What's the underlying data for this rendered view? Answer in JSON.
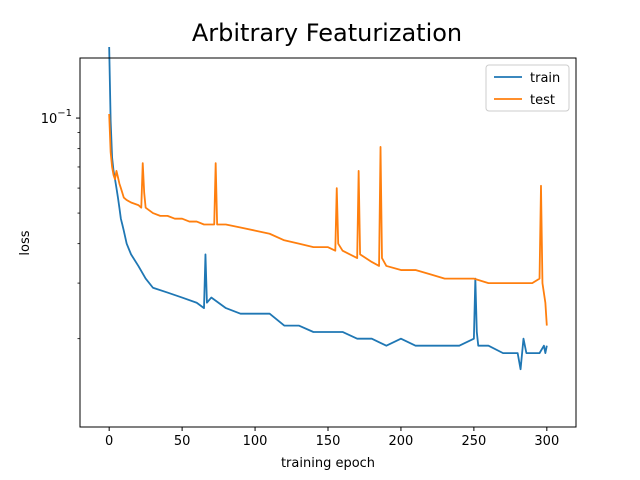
{
  "chart_data": {
    "type": "line",
    "title": "Arbitrary Featurization",
    "xlabel": "training epoch",
    "ylabel": "loss",
    "xlim": [
      -20,
      320
    ],
    "ylim": [
      0.0105,
      0.155
    ],
    "yscale": "log",
    "x_ticks": [
      0,
      50,
      100,
      150,
      200,
      250,
      300
    ],
    "x_tick_labels": [
      "0",
      "50",
      "100",
      "150",
      "200",
      "250",
      "300"
    ],
    "y_major_ticks": [
      0.1
    ],
    "y_tick_label_base": "10",
    "y_tick_label_exp": "−1",
    "legend_position": "top-right",
    "series": [
      {
        "name": "train",
        "color": "#1f77b4",
        "x": [
          0,
          1,
          2,
          3,
          4,
          5,
          6,
          7,
          8,
          9,
          10,
          12,
          15,
          20,
          25,
          30,
          40,
          50,
          60,
          65,
          66,
          67,
          70,
          80,
          90,
          100,
          110,
          120,
          130,
          140,
          150,
          160,
          170,
          180,
          190,
          200,
          210,
          220,
          230,
          240,
          250,
          251,
          252,
          253,
          260,
          270,
          280,
          282,
          284,
          286,
          290,
          295,
          298,
          299,
          300
        ],
        "y": [
          0.168,
          0.098,
          0.075,
          0.068,
          0.064,
          0.06,
          0.056,
          0.052,
          0.048,
          0.046,
          0.044,
          0.04,
          0.037,
          0.034,
          0.031,
          0.029,
          0.028,
          0.027,
          0.026,
          0.025,
          0.037,
          0.026,
          0.027,
          0.025,
          0.024,
          0.024,
          0.024,
          0.022,
          0.022,
          0.021,
          0.021,
          0.021,
          0.02,
          0.02,
          0.019,
          0.02,
          0.019,
          0.019,
          0.019,
          0.019,
          0.02,
          0.031,
          0.021,
          0.019,
          0.019,
          0.018,
          0.018,
          0.016,
          0.02,
          0.018,
          0.018,
          0.018,
          0.019,
          0.018,
          0.019
        ]
      },
      {
        "name": "test",
        "color": "#ff7f0e",
        "x": [
          0,
          1,
          2,
          3,
          4,
          5,
          6,
          7,
          8,
          9,
          10,
          12,
          15,
          20,
          22,
          23,
          24,
          25,
          30,
          35,
          40,
          45,
          50,
          55,
          60,
          65,
          70,
          72,
          73,
          74,
          80,
          90,
          100,
          110,
          120,
          130,
          140,
          150,
          155,
          156,
          157,
          160,
          170,
          171,
          172,
          180,
          185,
          186,
          187,
          190,
          200,
          210,
          220,
          230,
          240,
          250,
          260,
          270,
          280,
          290,
          295,
          296,
          297,
          299,
          300
        ],
        "y": [
          0.103,
          0.078,
          0.07,
          0.066,
          0.064,
          0.068,
          0.065,
          0.062,
          0.06,
          0.058,
          0.056,
          0.055,
          0.054,
          0.053,
          0.052,
          0.072,
          0.058,
          0.052,
          0.05,
          0.049,
          0.049,
          0.048,
          0.048,
          0.047,
          0.047,
          0.046,
          0.046,
          0.046,
          0.072,
          0.046,
          0.046,
          0.045,
          0.044,
          0.043,
          0.041,
          0.04,
          0.039,
          0.039,
          0.038,
          0.06,
          0.04,
          0.038,
          0.036,
          0.068,
          0.037,
          0.035,
          0.034,
          0.081,
          0.036,
          0.034,
          0.033,
          0.033,
          0.032,
          0.031,
          0.031,
          0.031,
          0.03,
          0.03,
          0.03,
          0.03,
          0.031,
          0.061,
          0.03,
          0.026,
          0.022
        ]
      }
    ]
  }
}
